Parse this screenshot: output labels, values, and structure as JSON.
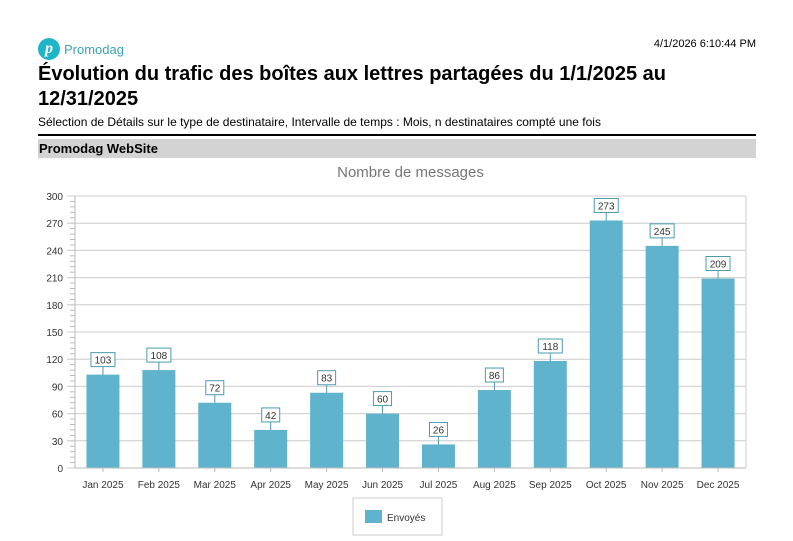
{
  "header": {
    "logo_text": "Promodag",
    "timestamp": "4/1/2026 6:10:44 PM",
    "title": "Évolution du trafic des boîtes aux lettres partagées du 1/1/2025 au 12/31/2025",
    "subtitle": "Sélection de Détails sur le type de destinataire, Intervalle de temps : Mois, n destinataires compté une fois",
    "section": "Promodag WebSite"
  },
  "colors": {
    "bar": "#5fb3cc",
    "label_border": "#4a9bb0"
  },
  "chart_data": {
    "type": "bar",
    "title": "Nombre de messages",
    "categories": [
      "Jan 2025",
      "Feb 2025",
      "Mar 2025",
      "Apr 2025",
      "May 2025",
      "Jun 2025",
      "Jul 2025",
      "Aug 2025",
      "Sep 2025",
      "Oct 2025",
      "Nov 2025",
      "Dec 2025"
    ],
    "series": [
      {
        "name": "Envoyés",
        "values": [
          103,
          108,
          72,
          42,
          83,
          60,
          26,
          86,
          118,
          273,
          245,
          209
        ]
      }
    ],
    "ylim": [
      0,
      300
    ],
    "yticks": [
      0,
      30,
      60,
      90,
      120,
      150,
      180,
      210,
      240,
      270,
      300
    ],
    "grid": true,
    "legend": "bottom"
  }
}
